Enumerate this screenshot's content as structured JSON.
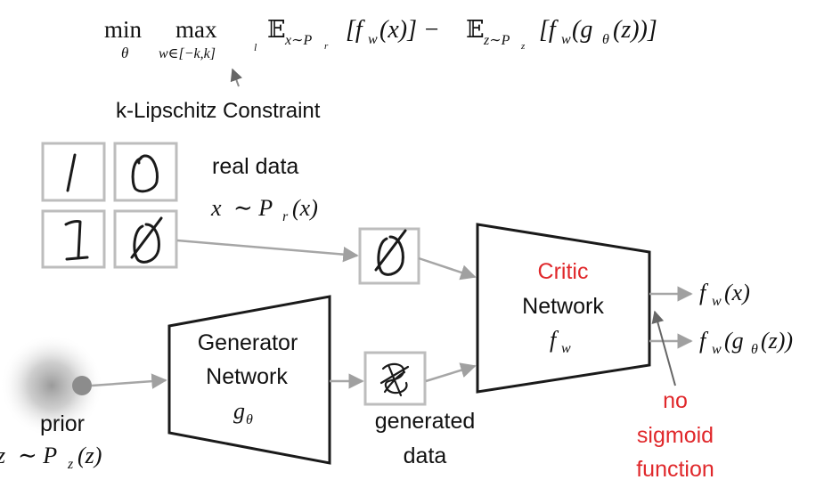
{
  "formula": {
    "min": "min",
    "min_sub": "θ",
    "max": "max",
    "max_sub": "w∈[−k,k]",
    "max_sub_sup": "l",
    "E": "𝔼",
    "E1_sub": "x∼P",
    "E1_sub_sub": "r",
    "term1": "[f",
    "term1_sub": "w",
    "term1_rest": "(x)] − ",
    "E2_sub": "z∼P",
    "E2_sub_sub": "z",
    "term2": "[f",
    "term2_sub": "w",
    "term2_mid": "(g",
    "term2_mid_sub": "θ",
    "term2_rest": "(z))]"
  },
  "constraint_label": "k-Lipschitz Constraint",
  "real_data": {
    "label": "real data",
    "dist_x": "x",
    "dist_sim": "∼ P",
    "dist_sub": "r",
    "dist_rest": "(x)"
  },
  "generator": {
    "line1": "Generator",
    "line2": "Network",
    "symbol": "g",
    "symbol_sub": "θ"
  },
  "critic": {
    "line1": "Critic",
    "line2": "Network",
    "symbol": "f",
    "symbol_sub": "w"
  },
  "outputs": {
    "out1": "f",
    "out1_sub": "w",
    "out1_rest": "(x)",
    "out2": "f",
    "out2_sub": "w",
    "out2_mid": "(g",
    "out2_mid_sub": "θ",
    "out2_rest": "(z))"
  },
  "generated": {
    "line1": "generated",
    "line2": "data"
  },
  "prior": {
    "label": "prior",
    "dist_z": "z",
    "dist_sim": "∼ P",
    "dist_sub": "z",
    "dist_rest": "(z)"
  },
  "note": {
    "line1": "no",
    "line2": "sigmoid",
    "line3": "function"
  },
  "colors": {
    "accent_red": "#e0282b",
    "arrow_gray": "#a6a6a6",
    "box_gray": "#bdbdbd"
  }
}
